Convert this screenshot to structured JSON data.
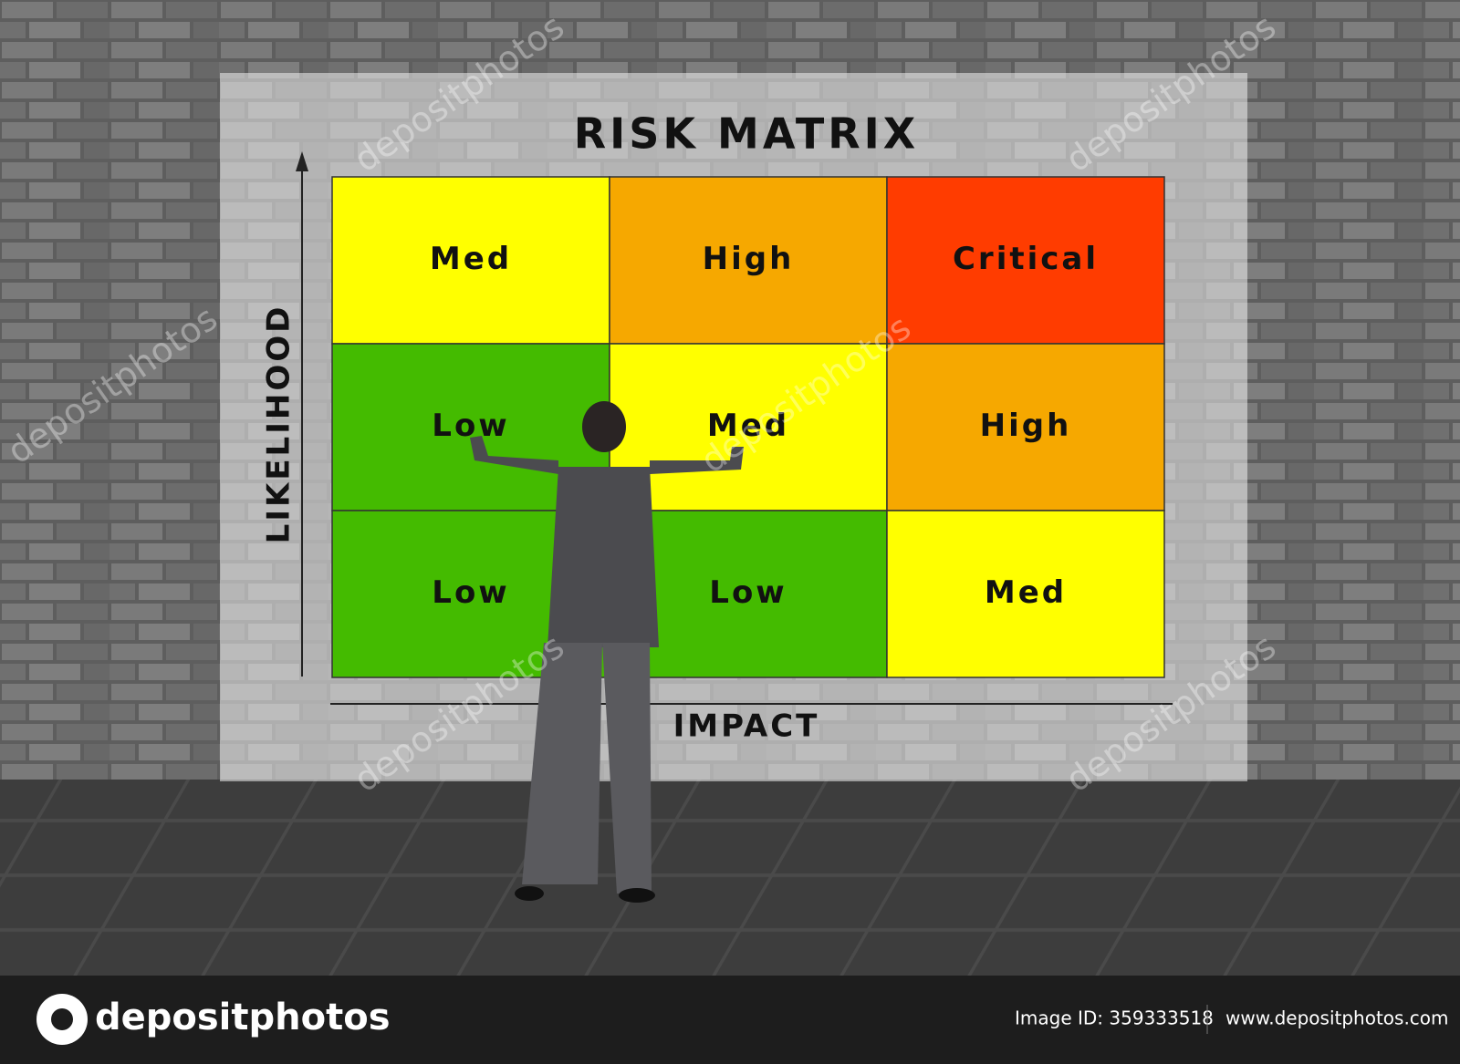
{
  "title": "RISK MATRIX",
  "y_axis_label": "LIKELIHOOD",
  "x_axis_label": "IMPACT",
  "matrix": {
    "rows": [
      [
        {
          "label": "Med",
          "color": "#ffff00"
        },
        {
          "label": "High",
          "color": "#f6a800"
        },
        {
          "label": "Critical",
          "color": "#ff3c00"
        }
      ],
      [
        {
          "label": "Low",
          "color": "#44bb00"
        },
        {
          "label": "Med",
          "color": "#ffff00"
        },
        {
          "label": "High",
          "color": "#f6a800"
        }
      ],
      [
        {
          "label": "Low",
          "color": "#44bb00"
        },
        {
          "label": "Low",
          "color": "#44bb00"
        },
        {
          "label": "Med",
          "color": "#ffff00"
        }
      ]
    ]
  },
  "watermark": "depositphotos",
  "footer": {
    "brand": "depositphotos",
    "image_id": "Image ID: 359333518",
    "url": "www.depositphotos.com"
  }
}
